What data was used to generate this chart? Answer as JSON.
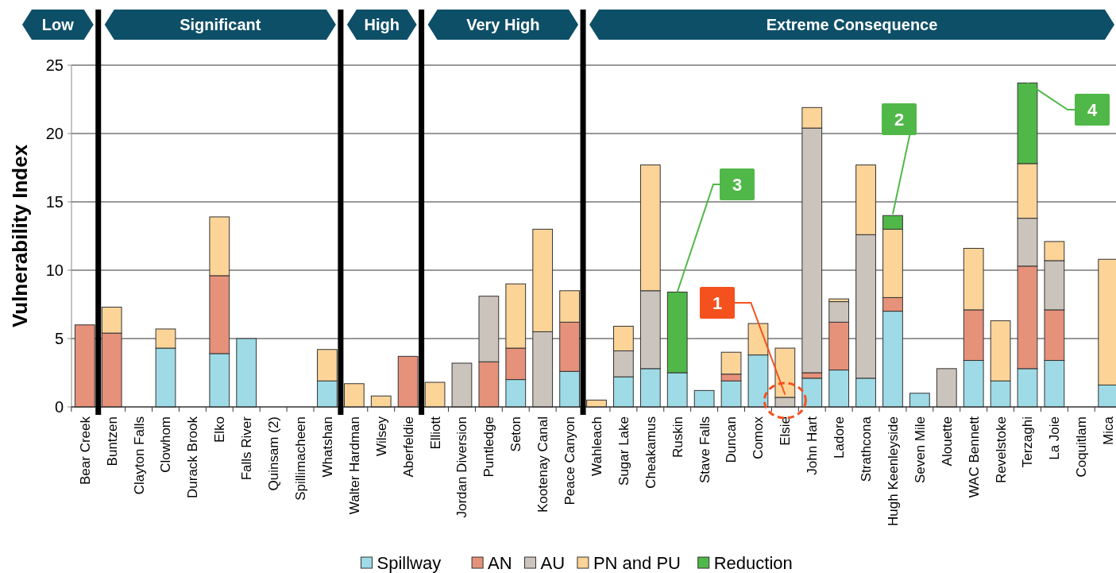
{
  "chart_data": {
    "type": "bar",
    "stacked": true,
    "ylabel": "Vulnerability Index",
    "categories": [
      "Bear Creek",
      "Buntzen",
      "Clayton Falls",
      "Clowhom",
      "Durack Brook",
      "Elko",
      "Falls River",
      "Quinsam (2)",
      "Spillimacheen",
      "Whatshan",
      "Walter Hardman",
      "Wilsey",
      "Aberfeldie",
      "Elliott",
      "Jordan Diversion",
      "Puntledge",
      "Seton",
      "Kootenay Canal",
      "Peace Canyon",
      "Wahleach",
      "Sugar Lake",
      "Cheakamus",
      "Ruskin",
      "Stave Falls",
      "Duncan",
      "Comox",
      "Elsie",
      "John Hart",
      "Ladore",
      "Strathcona",
      "Hugh Keenleyside",
      "Seven Mile",
      "Alouette",
      "WAC Bennett",
      "Revelstoke",
      "Terzaghi",
      "La Joie",
      "Coquitlam",
      "Mica"
    ],
    "series": [
      {
        "name": "Spillway",
        "color": "#9edbe6",
        "values": [
          0,
          0,
          0,
          4.3,
          0,
          3.9,
          5.0,
          0,
          0,
          1.9,
          0,
          0,
          0,
          0,
          0,
          0,
          2.0,
          0,
          2.6,
          0,
          2.2,
          2.8,
          2.5,
          1.2,
          1.9,
          3.8,
          0,
          2.1,
          2.7,
          2.1,
          7.0,
          1.0,
          0,
          3.4,
          1.9,
          2.8,
          3.4,
          0,
          1.6
        ]
      },
      {
        "name": "AN",
        "color": "#e6917a",
        "values": [
          6.0,
          5.4,
          0,
          0,
          0,
          5.7,
          0,
          0,
          0,
          0,
          0,
          0,
          3.7,
          0,
          0,
          3.3,
          2.3,
          0,
          3.6,
          0,
          0,
          0,
          0,
          0,
          0.5,
          0,
          0,
          0.4,
          3.5,
          0,
          1.0,
          0,
          0,
          3.7,
          0,
          7.5,
          3.7,
          0,
          0
        ]
      },
      {
        "name": "AU",
        "color": "#cbc4bd",
        "values": [
          0,
          0,
          0,
          0,
          0,
          0,
          0,
          0,
          0,
          0,
          0,
          0,
          0,
          0,
          3.2,
          4.8,
          0,
          5.5,
          0,
          0,
          1.9,
          5.7,
          0,
          0,
          0,
          0,
          0.7,
          17.9,
          1.5,
          10.5,
          0,
          0,
          2.8,
          0,
          0,
          3.5,
          3.6,
          0,
          0
        ]
      },
      {
        "name": "PN and PU",
        "color": "#fcd498",
        "values": [
          0,
          1.9,
          0,
          1.4,
          0,
          4.3,
          0,
          0,
          0,
          2.3,
          1.7,
          0.8,
          0,
          1.8,
          0,
          0,
          4.7,
          7.5,
          2.3,
          0.5,
          1.8,
          9.2,
          0,
          0,
          1.6,
          2.3,
          3.6,
          1.5,
          0.2,
          5.1,
          5.0,
          0,
          0,
          4.5,
          4.4,
          4.0,
          1.4,
          0,
          9.2
        ]
      },
      {
        "name": "Reduction",
        "color": "#50b848",
        "values": [
          0,
          0,
          0,
          0,
          0,
          0,
          0,
          0,
          0,
          0,
          0,
          0,
          0,
          0,
          0,
          0,
          0,
          0,
          0,
          0,
          0,
          0,
          5.9,
          0,
          0,
          0,
          0,
          0,
          0,
          0,
          1.0,
          0,
          0,
          0,
          0,
          5.9,
          0,
          0,
          0
        ]
      }
    ],
    "ylim": [
      0,
      25
    ],
    "yticks": [
      0,
      5,
      10,
      15,
      20,
      25
    ],
    "grid": "y",
    "legend": "bottom",
    "annotations": [
      "Low",
      "Significant",
      "High",
      "Very High",
      "Extreme Consequence",
      {
        "text": "1",
        "x": "Elsie",
        "y": 0.9
      },
      {
        "text": "2",
        "x": "Hugh Keenleyside",
        "y": 14.1
      },
      {
        "text": "3",
        "x": "Ruskin",
        "y": 8.4
      },
      {
        "text": "4",
        "x": "Terzaghi",
        "y": 23.7
      }
    ]
  }
}
